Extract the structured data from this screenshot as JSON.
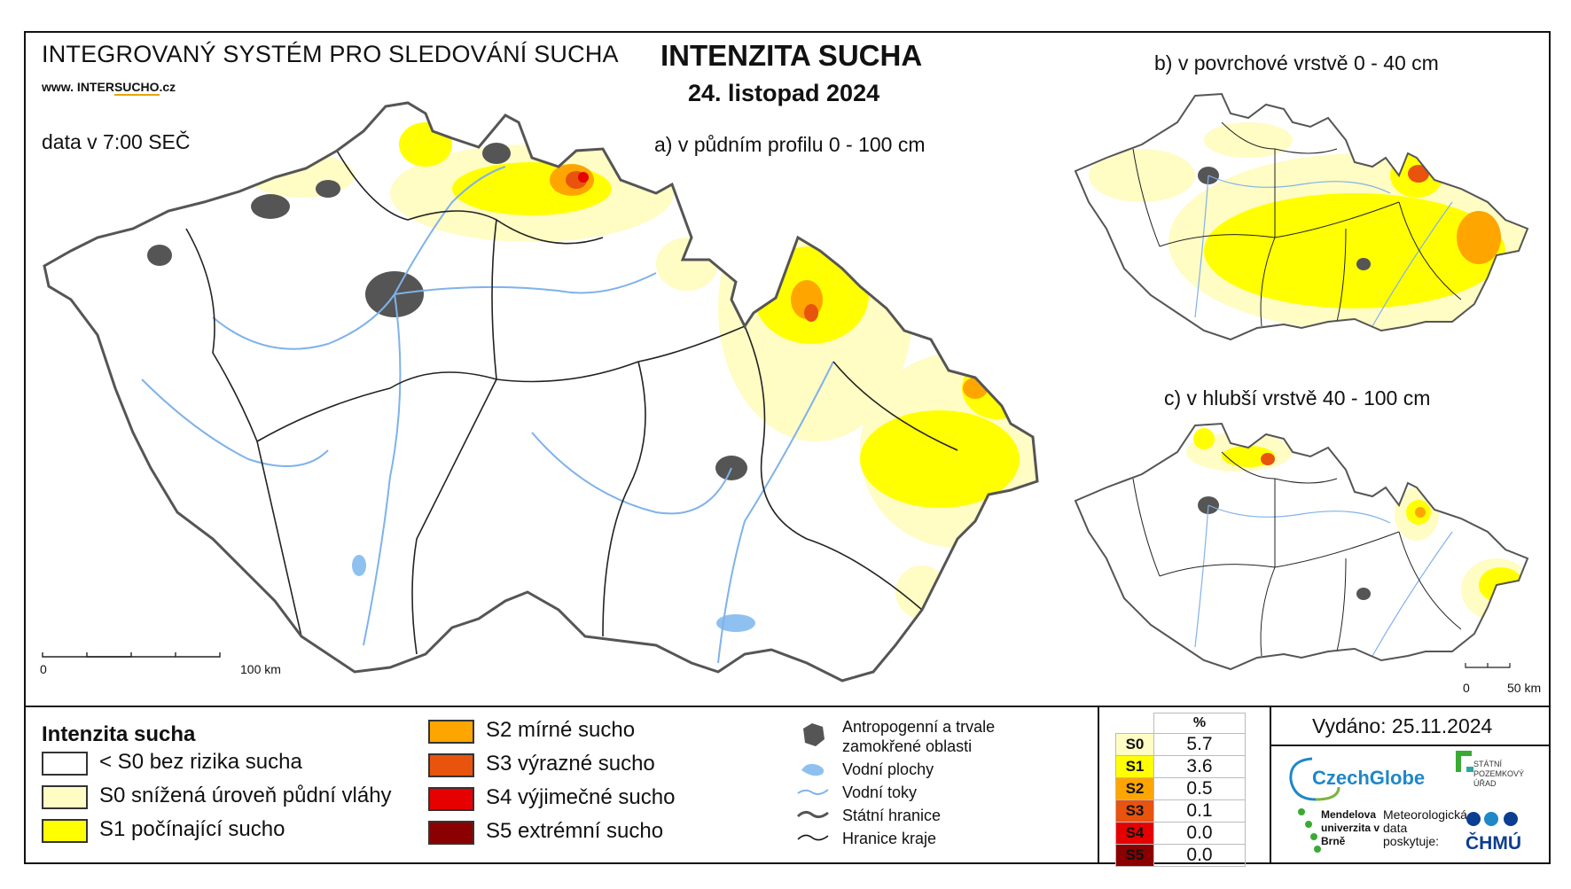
{
  "header": {
    "system_name": "INTEGROVANÝ SYSTÉM PRO SLEDOVÁNÍ SUCHA",
    "website_prefix": "www. INTER",
    "website_brand": "SUCHO",
    "website_suffix": ".cz",
    "data_time": "data v 7:00 SEČ",
    "title": "INTENZITA SUCHA",
    "date": "24. listopad 2024"
  },
  "maps": {
    "a_label": "a) v půdním profilu 0 - 100 cm",
    "b_label": "b) v povrchové vrstvě 0 - 40 cm",
    "c_label": "c) v hlubší vrstvě 40 - 100 cm",
    "scale_a_start": "0",
    "scale_a_end": "100 km",
    "scale_c_start": "0",
    "scale_c_end": "50 km"
  },
  "legend": {
    "title": "Intenzita sucha",
    "classes": [
      {
        "label": "< S0 bez rizika sucha",
        "color": "#ffffff"
      },
      {
        "label": "S0 snížená úroveň půdní vláhy",
        "color": "#fffcc4"
      },
      {
        "label": "S1 počínající sucho",
        "color": "#ffff00"
      },
      {
        "label": "S2 mírné sucho",
        "color": "#ffa500"
      },
      {
        "label": "S3 výrazné sucho",
        "color": "#e8530e"
      },
      {
        "label": "S4 výjimečné sucho",
        "color": "#e60000"
      },
      {
        "label": "S5 extrémní sucho",
        "color": "#8b0000"
      }
    ],
    "other": [
      {
        "label": "Antropogenní a trvale",
        "label2": "zamokřené oblasti",
        "icon": "urban-area-icon"
      },
      {
        "label": "Vodní plochy",
        "icon": "water-body-icon"
      },
      {
        "label": "Vodní toky",
        "icon": "river-icon"
      },
      {
        "label": "Státní hranice",
        "icon": "state-border-icon"
      },
      {
        "label": "Hranice kraje",
        "icon": "region-border-icon"
      }
    ]
  },
  "stats": {
    "header": "%",
    "rows": [
      {
        "k": "S0",
        "v": "5.7",
        "color": "#fffcc4"
      },
      {
        "k": "S1",
        "v": "3.6",
        "color": "#ffff00"
      },
      {
        "k": "S2",
        "v": "0.5",
        "color": "#ffa500"
      },
      {
        "k": "S3",
        "v": "0.1",
        "color": "#e8530e"
      },
      {
        "k": "S4",
        "v": "0.0",
        "color": "#e60000"
      },
      {
        "k": "S5",
        "v": "0.0",
        "color": "#8b0000"
      }
    ]
  },
  "footer": {
    "issued": "Vydáno: 25.11.2024",
    "czechglobe": "CzechGlobe",
    "mendelu": "Mendelova univerzita v Brně",
    "met_data": "Meteorologická data poskytuje:",
    "spu": "STÁTNÍ POZEMKOVÝ ÚŘAD",
    "chmu": "ČHMÚ"
  }
}
